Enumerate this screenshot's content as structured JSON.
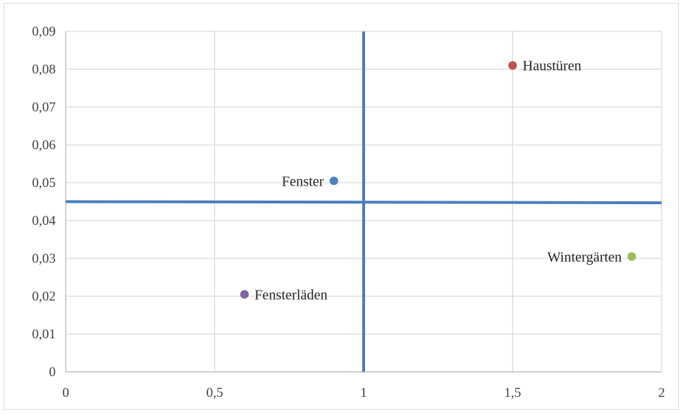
{
  "chart_data": {
    "type": "scatter",
    "title": "",
    "xlabel": "",
    "ylabel": "",
    "xlim": [
      0,
      2
    ],
    "ylim": [
      0,
      0.09
    ],
    "x_ticks": [
      {
        "value": 0,
        "label": "0"
      },
      {
        "value": 0.5,
        "label": "0,5"
      },
      {
        "value": 1,
        "label": "1"
      },
      {
        "value": 1.5,
        "label": "1,5"
      },
      {
        "value": 2,
        "label": "2"
      }
    ],
    "y_ticks": [
      {
        "value": 0,
        "label": "0"
      },
      {
        "value": 0.01,
        "label": "0,01"
      },
      {
        "value": 0.02,
        "label": "0,02"
      },
      {
        "value": 0.03,
        "label": "0,03"
      },
      {
        "value": 0.04,
        "label": "0,04"
      },
      {
        "value": 0.05,
        "label": "0,05"
      },
      {
        "value": 0.06,
        "label": "0,06"
      },
      {
        "value": 0.07,
        "label": "0,07"
      },
      {
        "value": 0.08,
        "label": "0,08"
      },
      {
        "value": 0.09,
        "label": "0,09"
      }
    ],
    "grid": true,
    "legend": "none",
    "points": [
      {
        "name": "Haustüren",
        "x": 1.5,
        "y": 0.081,
        "color": "#c0504d",
        "label_side": "right"
      },
      {
        "name": "Fenster",
        "x": 0.9,
        "y": 0.0505,
        "color": "#4f81bd",
        "label_side": "left"
      },
      {
        "name": "Wintergärten",
        "x": 1.9,
        "y": 0.0305,
        "color": "#9bbb59",
        "label_side": "left"
      },
      {
        "name": "Fensterläden",
        "x": 0.6,
        "y": 0.0205,
        "color": "#8064a2",
        "label_side": "right"
      }
    ],
    "reference_lines": [
      {
        "orientation": "vertical",
        "x": 1,
        "y_range": [
          0,
          0.09
        ],
        "color": "#4a7ebb"
      },
      {
        "orientation": "horizontal",
        "y_start": 0.045,
        "y_end": 0.0447,
        "x_range": [
          0,
          2
        ],
        "color": "#4a7ebb"
      }
    ]
  }
}
